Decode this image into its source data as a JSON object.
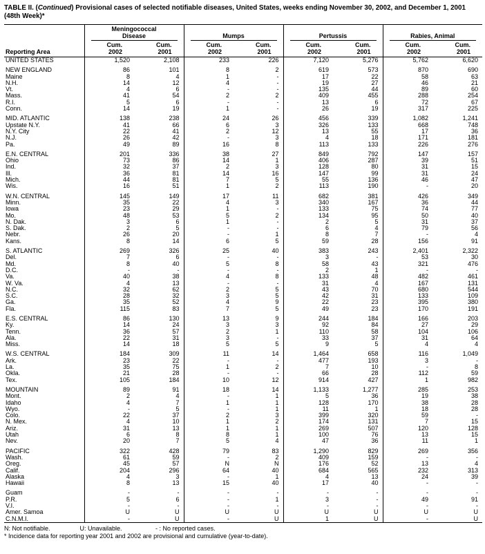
{
  "title": {
    "part1": "TABLE II. (",
    "continued": "Continued",
    "part2": ") Provisional cases of selected notifiable diseases, United States, weeks ending November 30, 2002, and December 1, 2001",
    "line2": "(48th Week)*"
  },
  "header": {
    "reporting_area_label": "Reporting Area",
    "groups": [
      {
        "label": "Meningococcal\nDisease"
      },
      {
        "label": "Mumps"
      },
      {
        "label": "Pertussis"
      },
      {
        "label": "Rabies, Animal"
      }
    ],
    "columns": [
      "Cum.\n2002",
      "Cum.\n2001",
      "Cum.\n2002",
      "Cum.\n2001",
      "Cum.\n2002",
      "Cum.\n2001",
      "Cum.\n2002",
      "Cum.\n2001"
    ]
  },
  "rows": [
    {
      "type": "total",
      "area": "UNITED STATES",
      "values": [
        "1,520",
        "2,108",
        "233",
        "226",
        "7,120",
        "5,276",
        "5,762",
        "6,620"
      ]
    },
    {
      "type": "spacer"
    },
    {
      "type": "region",
      "area": "NEW ENGLAND",
      "values": [
        "86",
        "101",
        "8",
        "2",
        "619",
        "573",
        "870",
        "690"
      ]
    },
    {
      "type": "item",
      "area": "Maine",
      "values": [
        "8",
        "4",
        "1",
        "-",
        "17",
        "22",
        "58",
        "63"
      ]
    },
    {
      "type": "item",
      "area": "N.H.",
      "values": [
        "14",
        "12",
        "4",
        "-",
        "19",
        "27",
        "46",
        "21"
      ]
    },
    {
      "type": "item",
      "area": "Vt.",
      "values": [
        "4",
        "6",
        "-",
        "-",
        "135",
        "44",
        "89",
        "60"
      ]
    },
    {
      "type": "item",
      "area": "Mass.",
      "values": [
        "41",
        "54",
        "2",
        "2",
        "409",
        "455",
        "288",
        "254"
      ]
    },
    {
      "type": "item",
      "area": "R.I.",
      "values": [
        "5",
        "6",
        "-",
        "-",
        "13",
        "6",
        "72",
        "67"
      ]
    },
    {
      "type": "item",
      "area": "Conn.",
      "values": [
        "14",
        "19",
        "1",
        "-",
        "26",
        "19",
        "317",
        "225"
      ]
    },
    {
      "type": "spacer"
    },
    {
      "type": "region",
      "area": "MID. ATLANTIC",
      "values": [
        "138",
        "238",
        "24",
        "26",
        "456",
        "339",
        "1,082",
        "1,241"
      ]
    },
    {
      "type": "item",
      "area": "Upstate N.Y.",
      "values": [
        "41",
        "66",
        "6",
        "3",
        "326",
        "133",
        "668",
        "748"
      ]
    },
    {
      "type": "item",
      "area": "N.Y. City",
      "values": [
        "22",
        "41",
        "2",
        "12",
        "13",
        "55",
        "17",
        "36"
      ]
    },
    {
      "type": "item",
      "area": "N.J.",
      "values": [
        "26",
        "42",
        "-",
        "3",
        "4",
        "18",
        "171",
        "181"
      ]
    },
    {
      "type": "item",
      "area": "Pa.",
      "values": [
        "49",
        "89",
        "16",
        "8",
        "113",
        "133",
        "226",
        "276"
      ]
    },
    {
      "type": "spacer"
    },
    {
      "type": "region",
      "area": "E.N. CENTRAL",
      "values": [
        "201",
        "336",
        "38",
        "27",
        "849",
        "792",
        "147",
        "157"
      ]
    },
    {
      "type": "item",
      "area": "Ohio",
      "values": [
        "73",
        "86",
        "14",
        "1",
        "406",
        "287",
        "39",
        "51"
      ]
    },
    {
      "type": "item",
      "area": "Ind.",
      "values": [
        "32",
        "37",
        "2",
        "3",
        "128",
        "80",
        "31",
        "15"
      ]
    },
    {
      "type": "item",
      "area": "Ill.",
      "values": [
        "36",
        "81",
        "14",
        "16",
        "147",
        "99",
        "31",
        "24"
      ]
    },
    {
      "type": "item",
      "area": "Mich.",
      "values": [
        "44",
        "81",
        "7",
        "5",
        "55",
        "136",
        "46",
        "47"
      ]
    },
    {
      "type": "item",
      "area": "Wis.",
      "values": [
        "16",
        "51",
        "1",
        "2",
        "113",
        "190",
        "-",
        "20"
      ]
    },
    {
      "type": "spacer"
    },
    {
      "type": "region",
      "area": "W.N. CENTRAL",
      "values": [
        "145",
        "149",
        "17",
        "11",
        "682",
        "381",
        "426",
        "349"
      ]
    },
    {
      "type": "item",
      "area": "Minn.",
      "values": [
        "35",
        "22",
        "4",
        "3",
        "340",
        "167",
        "36",
        "44"
      ]
    },
    {
      "type": "item",
      "area": "Iowa",
      "values": [
        "23",
        "29",
        "1",
        "-",
        "133",
        "75",
        "74",
        "77"
      ]
    },
    {
      "type": "item",
      "area": "Mo.",
      "values": [
        "48",
        "53",
        "5",
        "2",
        "134",
        "95",
        "50",
        "40"
      ]
    },
    {
      "type": "item",
      "area": "N. Dak.",
      "values": [
        "3",
        "6",
        "1",
        "-",
        "2",
        "5",
        "31",
        "37"
      ]
    },
    {
      "type": "item",
      "area": "S. Dak.",
      "values": [
        "2",
        "5",
        "-",
        "-",
        "6",
        "4",
        "79",
        "56"
      ]
    },
    {
      "type": "item",
      "area": "Nebr.",
      "values": [
        "26",
        "20",
        "-",
        "1",
        "8",
        "7",
        "-",
        "4"
      ]
    },
    {
      "type": "item",
      "area": "Kans.",
      "values": [
        "8",
        "14",
        "6",
        "5",
        "59",
        "28",
        "156",
        "91"
      ]
    },
    {
      "type": "spacer"
    },
    {
      "type": "region",
      "area": "S. ATLANTIC",
      "values": [
        "269",
        "326",
        "25",
        "40",
        "383",
        "243",
        "2,401",
        "2,322"
      ]
    },
    {
      "type": "item",
      "area": "Del.",
      "values": [
        "7",
        "6",
        "-",
        "-",
        "3",
        "-",
        "53",
        "30"
      ]
    },
    {
      "type": "item",
      "area": "Md.",
      "values": [
        "8",
        "40",
        "5",
        "8",
        "58",
        "43",
        "321",
        "476"
      ]
    },
    {
      "type": "item",
      "area": "D.C.",
      "values": [
        "-",
        "-",
        "-",
        "-",
        "2",
        "1",
        "-",
        "-"
      ]
    },
    {
      "type": "item",
      "area": "Va.",
      "values": [
        "40",
        "38",
        "4",
        "8",
        "133",
        "48",
        "482",
        "461"
      ]
    },
    {
      "type": "item",
      "area": "W. Va.",
      "values": [
        "4",
        "13",
        "-",
        "-",
        "31",
        "4",
        "167",
        "131"
      ]
    },
    {
      "type": "item",
      "area": "N.C.",
      "values": [
        "32",
        "62",
        "2",
        "5",
        "43",
        "70",
        "680",
        "544"
      ]
    },
    {
      "type": "item",
      "area": "S.C.",
      "values": [
        "28",
        "32",
        "3",
        "5",
        "42",
        "31",
        "133",
        "109"
      ]
    },
    {
      "type": "item",
      "area": "Ga.",
      "values": [
        "35",
        "52",
        "4",
        "9",
        "22",
        "23",
        "395",
        "380"
      ]
    },
    {
      "type": "item",
      "area": "Fla.",
      "values": [
        "115",
        "83",
        "7",
        "5",
        "49",
        "23",
        "170",
        "191"
      ]
    },
    {
      "type": "spacer"
    },
    {
      "type": "region",
      "area": "E.S. CENTRAL",
      "values": [
        "86",
        "130",
        "13",
        "9",
        "244",
        "184",
        "166",
        "203"
      ]
    },
    {
      "type": "item",
      "area": "Ky.",
      "values": [
        "14",
        "24",
        "3",
        "3",
        "92",
        "84",
        "27",
        "29"
      ]
    },
    {
      "type": "item",
      "area": "Tenn.",
      "values": [
        "36",
        "57",
        "2",
        "1",
        "110",
        "58",
        "104",
        "106"
      ]
    },
    {
      "type": "item",
      "area": "Ala.",
      "values": [
        "22",
        "31",
        "3",
        "-",
        "33",
        "37",
        "31",
        "64"
      ]
    },
    {
      "type": "item",
      "area": "Miss.",
      "values": [
        "14",
        "18",
        "5",
        "5",
        "9",
        "5",
        "4",
        "4"
      ]
    },
    {
      "type": "spacer"
    },
    {
      "type": "region",
      "area": "W.S. CENTRAL",
      "values": [
        "184",
        "309",
        "11",
        "14",
        "1,464",
        "658",
        "116",
        "1,049"
      ]
    },
    {
      "type": "item",
      "area": "Ark.",
      "values": [
        "23",
        "22",
        "-",
        "-",
        "477",
        "193",
        "3",
        "-"
      ]
    },
    {
      "type": "item",
      "area": "La.",
      "values": [
        "35",
        "75",
        "1",
        "2",
        "7",
        "10",
        "-",
        "8"
      ]
    },
    {
      "type": "item",
      "area": "Okla.",
      "values": [
        "21",
        "28",
        "-",
        "-",
        "66",
        "28",
        "112",
        "59"
      ]
    },
    {
      "type": "item",
      "area": "Tex.",
      "values": [
        "105",
        "184",
        "10",
        "12",
        "914",
        "427",
        "1",
        "982"
      ]
    },
    {
      "type": "spacer"
    },
    {
      "type": "region",
      "area": "MOUNTAIN",
      "values": [
        "89",
        "91",
        "18",
        "14",
        "1,133",
        "1,277",
        "285",
        "253"
      ]
    },
    {
      "type": "item",
      "area": "Mont.",
      "values": [
        "2",
        "4",
        "-",
        "1",
        "5",
        "36",
        "19",
        "38"
      ]
    },
    {
      "type": "item",
      "area": "Idaho",
      "values": [
        "4",
        "7",
        "1",
        "1",
        "128",
        "170",
        "38",
        "28"
      ]
    },
    {
      "type": "item",
      "area": "Wyo.",
      "values": [
        "-",
        "5",
        "-",
        "1",
        "11",
        "1",
        "18",
        "28"
      ]
    },
    {
      "type": "item",
      "area": "Colo.",
      "values": [
        "22",
        "37",
        "2",
        "3",
        "399",
        "320",
        "59",
        "-"
      ]
    },
    {
      "type": "item",
      "area": "N. Mex.",
      "values": [
        "4",
        "10",
        "1",
        "2",
        "174",
        "131",
        "7",
        "15"
      ]
    },
    {
      "type": "item",
      "area": "Ariz.",
      "values": [
        "31",
        "13",
        "1",
        "1",
        "269",
        "507",
        "120",
        "128"
      ]
    },
    {
      "type": "item",
      "area": "Utah",
      "values": [
        "6",
        "8",
        "8",
        "1",
        "100",
        "76",
        "13",
        "15"
      ]
    },
    {
      "type": "item",
      "area": "Nev.",
      "values": [
        "20",
        "7",
        "5",
        "4",
        "47",
        "36",
        "11",
        "1"
      ]
    },
    {
      "type": "spacer"
    },
    {
      "type": "region",
      "area": "PACIFIC",
      "values": [
        "322",
        "428",
        "79",
        "83",
        "1,290",
        "829",
        "269",
        "356"
      ]
    },
    {
      "type": "item",
      "area": "Wash.",
      "values": [
        "61",
        "59",
        "-",
        "2",
        "409",
        "159",
        "-",
        "-"
      ]
    },
    {
      "type": "item",
      "area": "Oreg.",
      "values": [
        "45",
        "57",
        "N",
        "N",
        "176",
        "52",
        "13",
        "4"
      ]
    },
    {
      "type": "item",
      "area": "Calif.",
      "values": [
        "204",
        "296",
        "64",
        "40",
        "684",
        "565",
        "232",
        "313"
      ]
    },
    {
      "type": "item",
      "area": "Alaska",
      "values": [
        "4",
        "3",
        "-",
        "1",
        "4",
        "13",
        "24",
        "39"
      ]
    },
    {
      "type": "item",
      "area": "Hawaii",
      "values": [
        "8",
        "13",
        "15",
        "40",
        "17",
        "40",
        "-",
        "-"
      ]
    },
    {
      "type": "spacer"
    },
    {
      "type": "item",
      "area": "Guam",
      "values": [
        "-",
        "-",
        "-",
        "-",
        "-",
        "-",
        "-",
        "-"
      ]
    },
    {
      "type": "item",
      "area": "P.R.",
      "values": [
        "5",
        "6",
        "-",
        "1",
        "3",
        "-",
        "49",
        "91"
      ]
    },
    {
      "type": "item",
      "area": "V.I.",
      "values": [
        "-",
        "-",
        "-",
        "-",
        "-",
        "-",
        "-",
        "-"
      ]
    },
    {
      "type": "item",
      "area": "Amer. Samoa",
      "values": [
        "U",
        "U",
        "U",
        "U",
        "U",
        "U",
        "U",
        "U"
      ]
    },
    {
      "type": "item",
      "area": "C.N.M.I.",
      "values": [
        "-",
        "U",
        "-",
        "U",
        "1",
        "U",
        "-",
        "U"
      ]
    }
  ],
  "footnotes": {
    "legend_n": "N: Not notifiable.",
    "legend_u": "U: Unavailable.",
    "legend_dash": "- : No reported cases.",
    "note": "* Incidence data for reporting year 2001 and 2002 are provisional and cumulative (year-to-date)."
  }
}
